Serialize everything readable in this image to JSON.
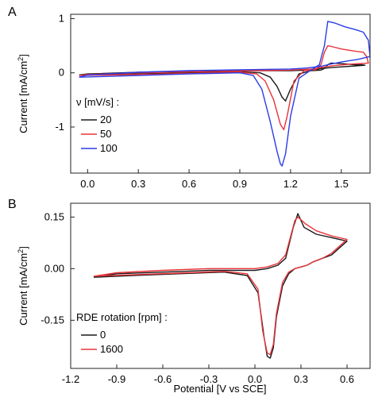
{
  "chart_data": [
    {
      "panel_label": "A",
      "type": "line",
      "xlabel": "",
      "ylabel": "Current [mA/cm²]",
      "ylabel_main": "Current [mA/cm",
      "ylabel_sup": "2",
      "ylabel_end": "]",
      "xlim": [
        -0.1,
        1.67
      ],
      "ylim": [
        -1.85,
        1.08
      ],
      "xticks": [
        0.0,
        0.3,
        0.6,
        0.9,
        1.2,
        1.5
      ],
      "xtick_labels": [
        "0.0",
        "0.3",
        "0.6",
        "0.9",
        "1.2",
        "1.5"
      ],
      "yticks": [
        1,
        0,
        -1
      ],
      "ytick_labels": [
        "1",
        "0",
        "-1"
      ],
      "legend_title": "ν [mV/s] :",
      "legend_position": "lower-left",
      "series": [
        {
          "name": "20",
          "color": "#1a1a1a",
          "x": [
            -0.05,
            0.3,
            0.6,
            0.9,
            1.02,
            1.08,
            1.12,
            1.15,
            1.17,
            1.2,
            1.25,
            1.32,
            1.38,
            1.4,
            1.42,
            1.44,
            1.5,
            1.58,
            1.62,
            1.64,
            1.64,
            1.55,
            1.45,
            1.38,
            1.35,
            1.3,
            1.2,
            1.0,
            0.6,
            0.3,
            0.0,
            -0.05
          ],
          "y": [
            -0.04,
            -0.02,
            0.0,
            0.02,
            0.0,
            -0.08,
            -0.25,
            -0.45,
            -0.52,
            -0.3,
            -0.02,
            0.04,
            0.05,
            0.08,
            0.15,
            0.18,
            0.17,
            0.15,
            0.15,
            0.14,
            0.14,
            0.12,
            0.1,
            0.08,
            0.06,
            0.05,
            0.04,
            0.04,
            0.03,
            0.01,
            -0.02,
            -0.04
          ]
        },
        {
          "name": "50",
          "color": "#e8333a",
          "x": [
            -0.05,
            0.3,
            0.6,
            0.9,
            1.0,
            1.05,
            1.1,
            1.14,
            1.16,
            1.18,
            1.22,
            1.28,
            1.35,
            1.38,
            1.4,
            1.42,
            1.45,
            1.5,
            1.58,
            1.63,
            1.65,
            1.66,
            1.66,
            1.55,
            1.45,
            1.38,
            1.33,
            1.2,
            1.0,
            0.6,
            0.3,
            0.0,
            -0.05
          ],
          "y": [
            -0.05,
            -0.03,
            -0.01,
            0.01,
            -0.02,
            -0.15,
            -0.5,
            -0.95,
            -1.05,
            -0.8,
            -0.15,
            0.04,
            0.06,
            0.15,
            0.38,
            0.5,
            0.48,
            0.44,
            0.4,
            0.38,
            0.3,
            0.18,
            0.18,
            0.16,
            0.13,
            0.1,
            0.07,
            0.05,
            0.04,
            0.02,
            0.0,
            -0.03,
            -0.05
          ]
        },
        {
          "name": "100",
          "color": "#2b3ce8",
          "x": [
            -0.05,
            0.3,
            0.6,
            0.9,
            0.98,
            1.03,
            1.08,
            1.12,
            1.14,
            1.15,
            1.17,
            1.2,
            1.25,
            1.32,
            1.37,
            1.4,
            1.42,
            1.46,
            1.52,
            1.58,
            1.63,
            1.66,
            1.67,
            1.67,
            1.6,
            1.5,
            1.42,
            1.38,
            1.3,
            1.2,
            1.0,
            0.6,
            0.3,
            0.0,
            -0.05
          ],
          "y": [
            -0.08,
            -0.05,
            -0.02,
            0.0,
            -0.05,
            -0.3,
            -0.9,
            -1.45,
            -1.68,
            -1.72,
            -1.5,
            -0.8,
            -0.1,
            0.05,
            0.15,
            0.5,
            0.95,
            0.92,
            0.85,
            0.8,
            0.75,
            0.6,
            0.3,
            0.3,
            0.25,
            0.2,
            0.15,
            0.12,
            0.09,
            0.07,
            0.06,
            0.04,
            0.01,
            -0.04,
            -0.08
          ]
        }
      ]
    },
    {
      "panel_label": "B",
      "type": "line",
      "xlabel": "Potential [V vs SCE]",
      "ylabel": "Current [mA/cm²]",
      "ylabel_main": "Current [mA/cm",
      "ylabel_sup": "2",
      "ylabel_end": "]",
      "xlim": [
        -1.2,
        0.75
      ],
      "ylim": [
        -0.29,
        0.19
      ],
      "xticks": [
        -1.2,
        -0.9,
        -0.6,
        -0.3,
        0.0,
        0.3,
        0.6
      ],
      "xtick_labels": [
        "-1.2",
        "-0.9",
        "-0.6",
        "-0.3",
        "0.0",
        "0.3",
        "0.6"
      ],
      "yticks": [
        0.15,
        0.0,
        -0.15
      ],
      "ytick_labels": [
        "0.15",
        "0.00",
        "-0.15"
      ],
      "legend_title": "RDE rotation [rpm] :",
      "legend_position": "lower-left",
      "series": [
        {
          "name": "0",
          "color": "#1a1a1a",
          "x": [
            -1.05,
            -0.8,
            -0.5,
            -0.2,
            -0.05,
            0.02,
            0.06,
            0.08,
            0.1,
            0.12,
            0.14,
            0.18,
            0.22,
            0.26,
            0.3,
            0.34,
            0.38,
            0.44,
            0.5,
            0.55,
            0.6,
            0.6,
            0.5,
            0.4,
            0.32,
            0.28,
            0.25,
            0.2,
            0.15,
            0.08,
            0.0,
            -0.3,
            -0.6,
            -0.9,
            -1.05
          ],
          "y": [
            -0.025,
            -0.02,
            -0.015,
            -0.01,
            -0.02,
            -0.07,
            -0.2,
            -0.255,
            -0.26,
            -0.23,
            -0.14,
            -0.05,
            -0.015,
            0.0,
            0.005,
            0.01,
            0.02,
            0.03,
            0.04,
            0.06,
            0.08,
            0.08,
            0.09,
            0.1,
            0.12,
            0.16,
            0.12,
            0.03,
            0.01,
            0.0,
            -0.005,
            -0.005,
            -0.01,
            -0.015,
            -0.025
          ]
        },
        {
          "name": "1600",
          "color": "#e8333a",
          "x": [
            -1.05,
            -0.8,
            -0.5,
            -0.2,
            -0.05,
            0.02,
            0.05,
            0.08,
            0.1,
            0.12,
            0.14,
            0.18,
            0.22,
            0.26,
            0.3,
            0.34,
            0.38,
            0.44,
            0.5,
            0.55,
            0.6,
            0.6,
            0.5,
            0.4,
            0.33,
            0.28,
            0.26,
            0.2,
            0.15,
            0.08,
            0.0,
            -0.3,
            -0.6,
            -0.9,
            -1.05
          ],
          "y": [
            -0.022,
            -0.018,
            -0.013,
            -0.008,
            -0.015,
            -0.06,
            -0.18,
            -0.245,
            -0.25,
            -0.22,
            -0.13,
            -0.04,
            -0.01,
            0.0,
            0.005,
            0.01,
            0.02,
            0.03,
            0.045,
            0.065,
            0.085,
            0.085,
            0.095,
            0.11,
            0.13,
            0.15,
            0.14,
            0.04,
            0.015,
            0.005,
            0.0,
            0.0,
            -0.005,
            -0.012,
            -0.022
          ]
        }
      ]
    }
  ]
}
